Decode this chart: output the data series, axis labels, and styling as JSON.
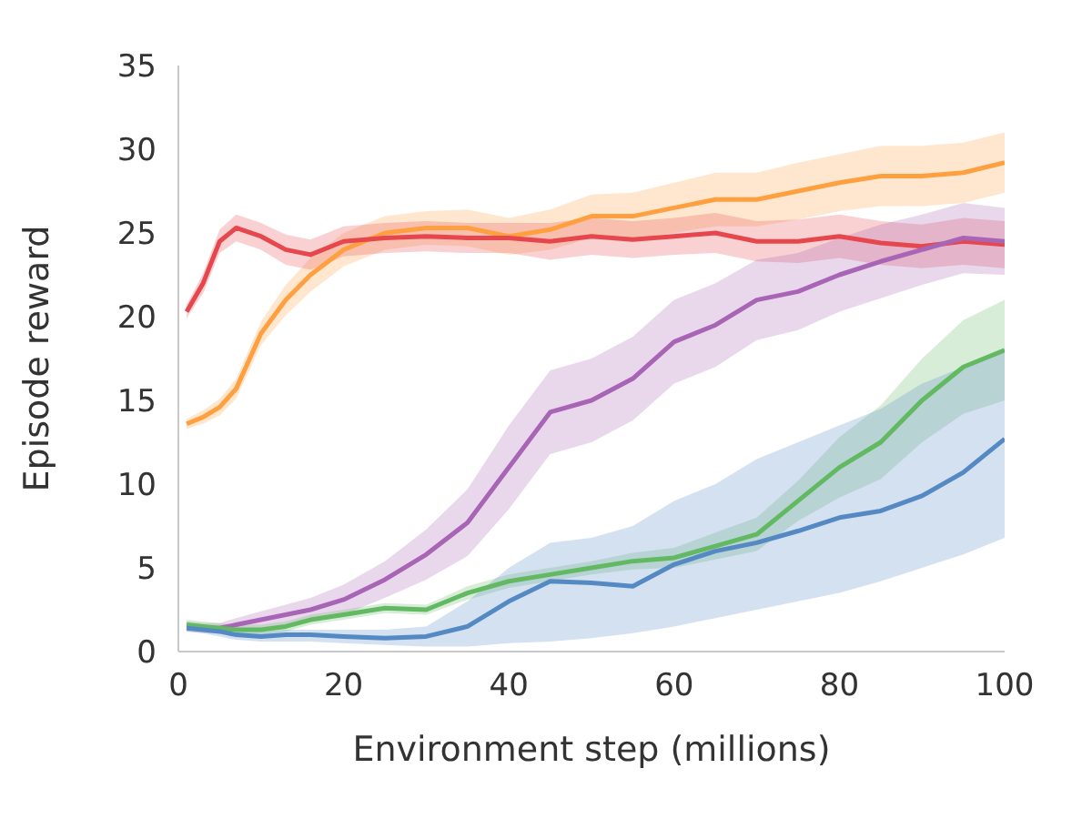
{
  "chart_data": {
    "type": "line",
    "xlabel": "Environment step (millions)",
    "ylabel": "Episode reward",
    "x": [
      1,
      3,
      5,
      7,
      10,
      13,
      16,
      20,
      25,
      30,
      35,
      40,
      45,
      50,
      55,
      60,
      65,
      70,
      75,
      80,
      85,
      90,
      95,
      100
    ],
    "xlim": [
      0,
      100
    ],
    "xticks": [
      0,
      20,
      40,
      60,
      80,
      100
    ],
    "ylim": [
      0,
      35
    ],
    "yticks": [
      0,
      5,
      10,
      15,
      20,
      25,
      30,
      35
    ],
    "line_style": "solid",
    "marker": "none",
    "series": [
      {
        "color": "#ffa040",
        "values": [
          13.6,
          14,
          14.6,
          15.7,
          19,
          21,
          22.5,
          24,
          25,
          25.3,
          25.3,
          24.8,
          25.2,
          26,
          26,
          26.5,
          27,
          27,
          27.5,
          28,
          28.4,
          28.4,
          28.6,
          29.2
        ],
        "lower": [
          13.3,
          13.6,
          14.1,
          15.1,
          18.3,
          20.1,
          21.5,
          23,
          24,
          24.3,
          24.2,
          23.7,
          24,
          24.7,
          24.6,
          25,
          25.4,
          25.4,
          25.8,
          26.3,
          26.6,
          26.6,
          26.8,
          27.4
        ],
        "upper": [
          13.9,
          14.4,
          15.1,
          16.3,
          19.7,
          21.9,
          23.5,
          25,
          26,
          26.3,
          26.4,
          25.9,
          26.4,
          27.3,
          27.4,
          28,
          28.6,
          28.6,
          29.2,
          29.7,
          30.2,
          30.2,
          30.4,
          31
        ]
      },
      {
        "color": "#e6474c",
        "values": [
          20.3,
          22,
          24.5,
          25.3,
          24.8,
          24,
          23.7,
          24.5,
          24.7,
          24.8,
          24.7,
          24.7,
          24.5,
          24.8,
          24.6,
          24.8,
          25,
          24.5,
          24.5,
          24.8,
          24.4,
          24.2,
          24.5,
          24.3
        ],
        "lower": [
          19.9,
          21.4,
          23.8,
          24.5,
          24,
          23.1,
          22.8,
          23.6,
          23.8,
          23.9,
          23.8,
          23.8,
          23.4,
          23.7,
          23.5,
          23.7,
          23.8,
          23.3,
          23.2,
          23.5,
          23.1,
          22.9,
          23.1,
          22.9
        ],
        "upper": [
          20.7,
          22.6,
          25.2,
          26.1,
          25.6,
          24.9,
          24.6,
          25.4,
          25.6,
          25.7,
          25.6,
          25.6,
          25.6,
          25.9,
          25.7,
          25.9,
          26.2,
          25.7,
          25.8,
          26.1,
          25.7,
          25.5,
          25.9,
          25.7
        ]
      },
      {
        "color": "#a865b5",
        "values": [
          1.5,
          1.4,
          1.4,
          1.6,
          1.9,
          2.2,
          2.5,
          3.1,
          4.3,
          5.8,
          7.7,
          11,
          14.3,
          15,
          16.3,
          18.5,
          19.5,
          21,
          21.5,
          22.5,
          23.3,
          24,
          24.7,
          24.5
        ],
        "lower": [
          1.2,
          1.1,
          1.1,
          1.2,
          1.4,
          1.6,
          1.8,
          2.2,
          3.2,
          4.3,
          5.7,
          8.5,
          11.8,
          12.5,
          13.8,
          16,
          17,
          18.6,
          19.2,
          20.3,
          21.1,
          21.9,
          22.6,
          22.5
        ],
        "upper": [
          1.8,
          1.7,
          1.7,
          2,
          2.4,
          2.8,
          3.2,
          4,
          5.4,
          7.3,
          9.7,
          13.5,
          16.8,
          17.5,
          18.8,
          21,
          22,
          23.4,
          23.8,
          24.7,
          25.5,
          26.1,
          26.8,
          26.5
        ]
      },
      {
        "color": "#62b962",
        "values": [
          1.6,
          1.5,
          1.4,
          1.3,
          1.3,
          1.5,
          1.9,
          2.2,
          2.6,
          2.5,
          3.5,
          4.2,
          4.6,
          5,
          5.4,
          5.6,
          6.3,
          7,
          9,
          11,
          12.5,
          15,
          17,
          18
        ],
        "lower": [
          1.3,
          1.2,
          1.1,
          1,
          1,
          1.2,
          1.6,
          1.9,
          2.3,
          2.2,
          3.1,
          3.8,
          4.2,
          4.6,
          4.9,
          5,
          5.5,
          6,
          7.8,
          9.2,
          10.3,
          12.5,
          14.2,
          15
        ],
        "upper": [
          1.9,
          1.8,
          1.7,
          1.6,
          1.6,
          1.8,
          2.2,
          2.5,
          2.9,
          2.8,
          3.9,
          4.6,
          5,
          5.4,
          5.9,
          6.2,
          7.1,
          8,
          10.2,
          12.8,
          14.7,
          17.5,
          19.8,
          21
        ]
      },
      {
        "color": "#5589c3",
        "values": [
          1.4,
          1.3,
          1.2,
          1,
          0.9,
          1,
          1,
          0.9,
          0.8,
          0.9,
          1.5,
          3,
          4.2,
          4.1,
          3.9,
          5.2,
          6,
          6.5,
          7.2,
          8,
          8.4,
          9.3,
          10.7,
          12.7
        ],
        "lower": [
          1.2,
          1.1,
          0.9,
          0.7,
          0.6,
          0.6,
          0.6,
          0.5,
          0.4,
          0.3,
          0.3,
          0.5,
          0.6,
          0.8,
          1.1,
          1.5,
          2,
          2.5,
          3,
          3.5,
          4.2,
          5,
          5.8,
          6.8
        ],
        "upper": [
          1.6,
          1.5,
          1.5,
          1.3,
          1.2,
          1.3,
          1.3,
          1.3,
          1.3,
          1.5,
          3,
          5,
          6.5,
          6.8,
          7.5,
          9,
          10,
          11.5,
          12.5,
          13.5,
          14.5,
          16,
          17,
          18
        ]
      }
    ]
  }
}
